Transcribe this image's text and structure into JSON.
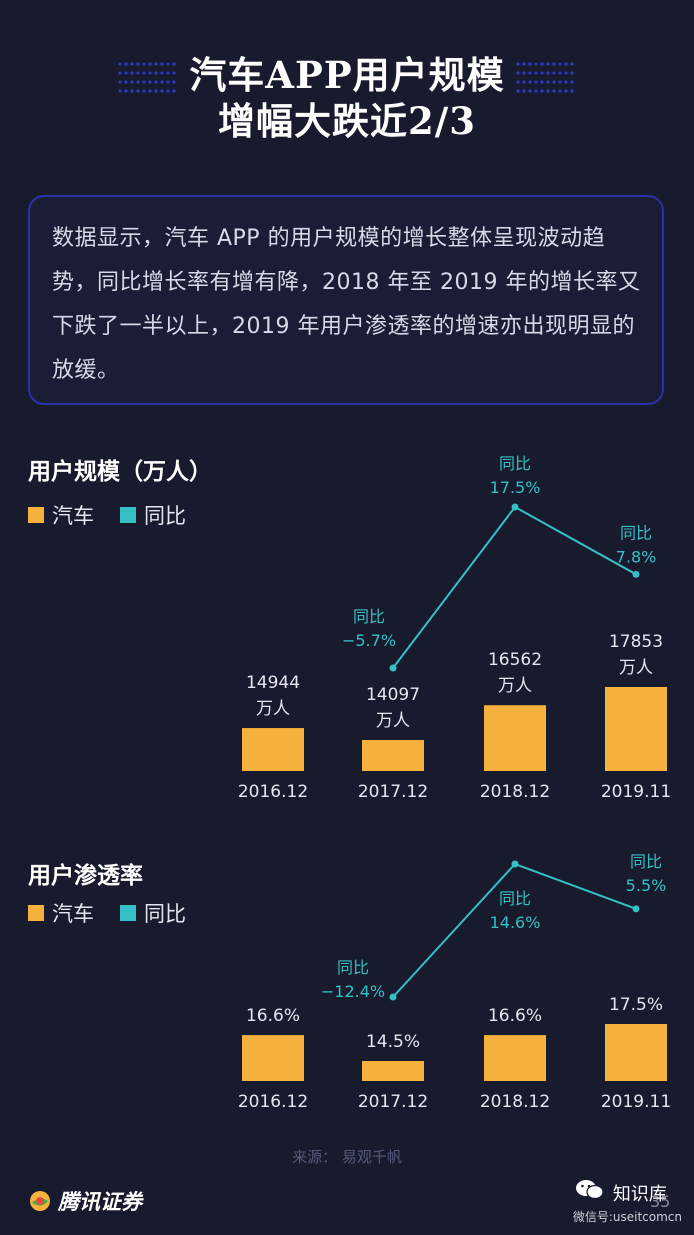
{
  "title": {
    "line1": "汽车APP用户规模",
    "line2": "增幅大跌近2/3"
  },
  "intro": "数据显示，汽车 APP 的用户规模的增长整体呈现波动趋势，同比增长率有增有降，2018 年至 2019 年的增长率又下跌了一半以上，2019 年用户渗透率的增速亦出现明显的放缓。",
  "colors": {
    "bar": "#f6b23c",
    "line": "#35c1c4",
    "text": "#e6e6ee"
  },
  "legend": {
    "bar_label": "汽车",
    "line_label": "同比"
  },
  "chart_data": [
    {
      "type": "bar",
      "title": "用户规模（万人）",
      "categories": [
        "2016.12",
        "2017.12",
        "2018.12",
        "2019.11"
      ],
      "series": [
        {
          "name": "汽车",
          "values": [
            14944,
            14097,
            16562,
            17853
          ]
        }
      ],
      "bar_labels": [
        [
          "14944",
          "万人"
        ],
        [
          "14097",
          "万人"
        ],
        [
          "16562",
          "万人"
        ],
        [
          "17853",
          "万人"
        ]
      ],
      "line": {
        "name": "同比",
        "points": [
          {
            "category": "2017.12",
            "value": -5.7,
            "label": "−5.7%",
            "tag": "同比"
          },
          {
            "category": "2018.12",
            "value": 17.5,
            "label": "17.5%",
            "tag": "同比"
          },
          {
            "category": "2019.11",
            "value": 7.8,
            "label": "7.8%",
            "tag": "同比"
          }
        ]
      }
    },
    {
      "type": "bar",
      "title": "用户渗透率",
      "categories": [
        "2016.12",
        "2017.12",
        "2018.12",
        "2019.11"
      ],
      "series": [
        {
          "name": "汽车",
          "values": [
            16.6,
            14.5,
            16.6,
            17.5
          ]
        }
      ],
      "bar_labels": [
        [
          "16.6%"
        ],
        [
          "14.5%"
        ],
        [
          "16.6%"
        ],
        [
          "17.5%"
        ]
      ],
      "line": {
        "name": "同比",
        "points": [
          {
            "category": "2017.12",
            "value": -12.4,
            "label": "−12.4%",
            "tag": "同比"
          },
          {
            "category": "2018.12",
            "value": 14.6,
            "label": "14.6%",
            "tag": "同比"
          },
          {
            "category": "2019.11",
            "value": 5.5,
            "label": "5.5%",
            "tag": "同比"
          }
        ]
      }
    }
  ],
  "source": "来源：   易观千帆",
  "brand": "腾讯证券",
  "watermark": {
    "name": "知识库",
    "sub": "微信号:useitcomcn"
  },
  "page_number": "35"
}
